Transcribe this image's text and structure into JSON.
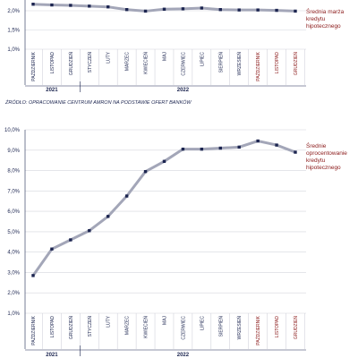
{
  "source": "ŹRÓDŁO: OPRACOWANIE CENTRUM AMRON NA PODSTAWIE OFERT BANKÓW",
  "chart_data": [
    {
      "type": "line",
      "categories": [
        "PAŹDZIERNIK",
        "LISTOPAD",
        "GRUDZIEŃ",
        "STYCZEŃ",
        "LUTY",
        "MARZEC",
        "KWIECIEŃ",
        "MAJ",
        "CZERWIEC",
        "LIPIEC",
        "SIERPIEŃ",
        "WRZESIEŃ",
        "PAŹDZIERNIK",
        "LISTOPAD",
        "GRUDZIEŃ"
      ],
      "years": [
        "2021",
        "2022"
      ],
      "series": [
        {
          "name": [
            "Średnia marża",
            "kredytu",
            "hipotecznego"
          ],
          "color": "#a3a6b8",
          "marker_color": "#1c2550",
          "values": [
            2.17,
            2.15,
            2.14,
            2.12,
            2.1,
            2.03,
            1.99,
            2.04,
            2.05,
            2.07,
            2.03,
            2.02,
            2.02,
            2.01,
            1.99
          ]
        }
      ],
      "ylim": [
        1.0,
        2.28
      ],
      "yticks": [
        {
          "value": 1.0,
          "label": "1,0%"
        },
        {
          "value": 1.5,
          "label": "1,5%"
        },
        {
          "value": 2.0,
          "label": "2,0%"
        }
      ],
      "grid": true
    },
    {
      "type": "line",
      "categories": [
        "PAŹDZIERNIK",
        "LISTOPAD",
        "GRUDZIEŃ",
        "STYCZEŃ",
        "LUTY",
        "MARZEC",
        "KWIECIEŃ",
        "MAJ",
        "CZERWIEC",
        "LIPIEC",
        "SIERPIEŃ",
        "WRZESIEŃ",
        "PAŹDZIERNIK",
        "LISTOPAD",
        "GRUDZIEŃ"
      ],
      "years": [
        "2021",
        "2022"
      ],
      "series": [
        {
          "name": [
            "Średnie",
            "oprocentowanie",
            "kredytu",
            "hipotecznego"
          ],
          "color": "#a3a6b8",
          "marker_color": "#1c2550",
          "values": [
            2.85,
            4.15,
            4.6,
            5.05,
            5.75,
            6.75,
            7.95,
            8.45,
            9.05,
            9.05,
            9.1,
            9.15,
            9.45,
            9.25,
            8.9
          ]
        }
      ],
      "ylim": [
        1.0,
        10.0
      ],
      "yticks": [
        {
          "value": 1.0,
          "label": "1,0%"
        },
        {
          "value": 2.0,
          "label": "2,0%"
        },
        {
          "value": 3.0,
          "label": "3,0%"
        },
        {
          "value": 4.0,
          "label": "4,0%"
        },
        {
          "value": 5.0,
          "label": "5,0%"
        },
        {
          "value": 6.0,
          "label": "6,0%"
        },
        {
          "value": 7.0,
          "label": "7,0%"
        },
        {
          "value": 8.0,
          "label": "8,0%"
        },
        {
          "value": 9.0,
          "label": "9,0%"
        },
        {
          "value": 10.0,
          "label": "10,0%"
        }
      ],
      "grid": true
    }
  ]
}
